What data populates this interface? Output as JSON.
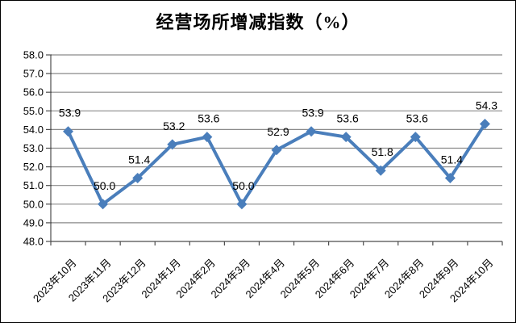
{
  "window": {
    "background": "#FFFFFF",
    "border_color": "#000000"
  },
  "chart_data": {
    "type": "line",
    "title": "经营场所增减指数（%）",
    "categories": [
      "2023年10月",
      "2023年11月",
      "2023年12月",
      "2024年1月",
      "2024年2月",
      "2024年3月",
      "2024年4月",
      "2024年5月",
      "2024年6月",
      "2024年7月",
      "2024年8月",
      "2024年9月",
      "2024年10月"
    ],
    "values": [
      53.9,
      50.0,
      51.4,
      53.2,
      53.6,
      50.0,
      52.9,
      53.9,
      53.6,
      51.8,
      53.6,
      51.4,
      54.3
    ],
    "value_labels": [
      "53.9",
      "50.0",
      "51.4",
      "53.2",
      "53.6",
      "50.0",
      "52.9",
      "53.9",
      "53.6",
      "51.8",
      "53.6",
      "51.4",
      "54.3"
    ],
    "ytick_labels": [
      "58.0",
      "57.0",
      "56.0",
      "55.0",
      "54.0",
      "53.0",
      "52.0",
      "51.0",
      "50.0",
      "49.0",
      "48.0"
    ],
    "ylim": [
      48.0,
      58.0
    ],
    "ytick_step": 1.0,
    "xlabel": "",
    "ylabel": "",
    "grid": true,
    "legend": "none",
    "marker": "diamond",
    "styles": {
      "line_color": "#4A7EBB",
      "marker_color": "#4A7EBB",
      "grid_color": "#8A8A8A",
      "axis_color": "#4D4D4D",
      "text_color": "#000000",
      "title_color": "#000000"
    }
  }
}
